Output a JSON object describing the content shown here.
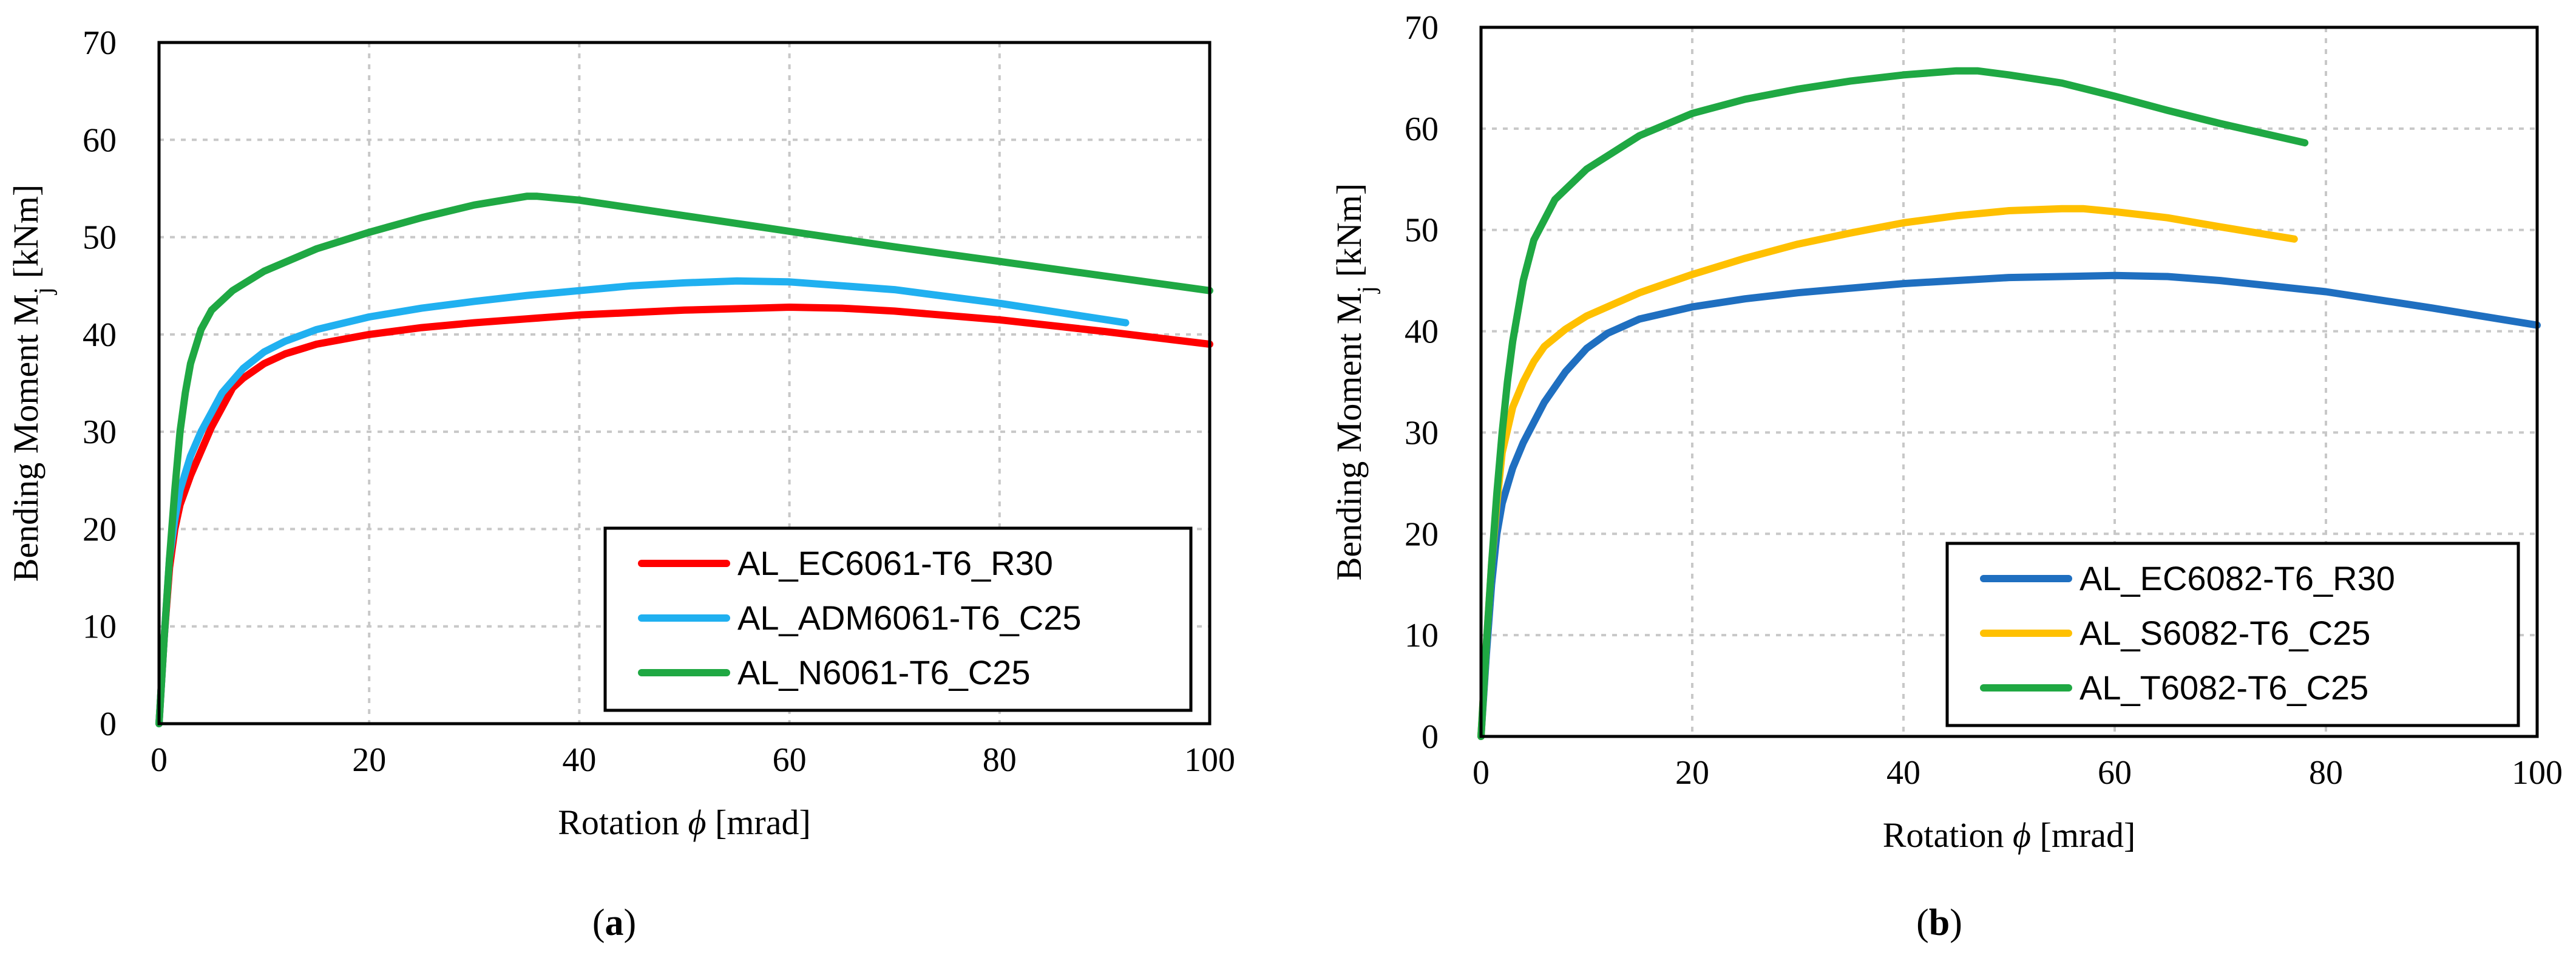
{
  "chart_data": [
    {
      "type": "line",
      "caption": "a",
      "xlabel_prefix": "Rotation ",
      "xlabel_symbol": "ϕ",
      "xlabel_suffix": " [mrad]",
      "ylabel_prefix": "Bending Moment M",
      "ylabel_sub": "j",
      "ylabel_suffix": " [kNm]",
      "xlim": [
        0,
        100
      ],
      "ylim": [
        0,
        70
      ],
      "xticks": [
        "0",
        "20",
        "40",
        "60",
        "80",
        "100"
      ],
      "yticks": [
        "0",
        "10",
        "20",
        "30",
        "40",
        "50",
        "60",
        "70"
      ],
      "grid": true,
      "legend_position": "bottom-right",
      "series": [
        {
          "name": "AL_EC6061-T6_R30",
          "color": "#ff0000",
          "x": [
            0,
            0.5,
            1,
            1.5,
            2,
            3,
            4,
            5,
            6,
            7,
            8,
            10,
            12,
            15,
            20,
            25,
            30,
            35,
            40,
            50,
            60,
            65,
            70,
            80,
            90,
            100
          ],
          "y": [
            0,
            9,
            16,
            20,
            22.5,
            25.5,
            28,
            30.5,
            32.5,
            34.5,
            35.5,
            37,
            38,
            39,
            40,
            40.7,
            41.2,
            41.6,
            42,
            42.5,
            42.8,
            42.7,
            42.4,
            41.5,
            40.3,
            39
          ]
        },
        {
          "name": "AL_ADM6061-T6_C25",
          "color": "#20b0f0",
          "x": [
            0,
            0.5,
            1,
            1.5,
            2,
            3,
            4,
            5,
            6,
            8,
            10,
            12,
            15,
            20,
            25,
            30,
            35,
            40,
            45,
            50,
            55,
            60,
            65,
            70,
            80,
            92
          ],
          "y": [
            0,
            9,
            17,
            21,
            24,
            27.5,
            30,
            32,
            34,
            36.5,
            38.2,
            39.3,
            40.5,
            41.8,
            42.7,
            43.4,
            44,
            44.5,
            45,
            45.3,
            45.5,
            45.4,
            45,
            44.6,
            43.2,
            41.2
          ]
        },
        {
          "name": "AL_N6061-T6_C25",
          "color": "#1fa843",
          "x": [
            0,
            0.5,
            1,
            1.5,
            2,
            2.5,
            3,
            4,
            5,
            7,
            10,
            15,
            20,
            25,
            30,
            35,
            36,
            40,
            50,
            60,
            70,
            80,
            90,
            100
          ],
          "y": [
            0,
            9,
            17,
            24,
            30,
            34,
            37,
            40.5,
            42.5,
            44.5,
            46.5,
            48.8,
            50.5,
            52,
            53.3,
            54.2,
            54.2,
            53.8,
            52.2,
            50.6,
            49,
            47.5,
            46,
            44.5
          ]
        }
      ]
    },
    {
      "type": "line",
      "caption": "b",
      "xlabel_prefix": "Rotation ",
      "xlabel_symbol": "ϕ",
      "xlabel_suffix": " [mrad]",
      "ylabel_prefix": "Bending Moment M",
      "ylabel_sub": "j",
      "ylabel_suffix": " [kNm]",
      "xlim": [
        0,
        100
      ],
      "ylim": [
        0,
        70
      ],
      "xticks": [
        "0",
        "20",
        "40",
        "60",
        "80",
        "100"
      ],
      "yticks": [
        "0",
        "10",
        "20",
        "30",
        "40",
        "50",
        "60",
        "70"
      ],
      "grid": true,
      "legend_position": "bottom-right",
      "series": [
        {
          "name": "AL_EC6082-T6_R30",
          "color": "#1f6fc0",
          "x": [
            0,
            0.5,
            1,
            1.5,
            2,
            3,
            4,
            5,
            6,
            8,
            10,
            12,
            15,
            20,
            25,
            30,
            40,
            50,
            60,
            65,
            70,
            80,
            90,
            100
          ],
          "y": [
            0,
            8,
            15,
            20,
            23,
            26.5,
            29,
            31,
            33,
            36,
            38.3,
            39.8,
            41.2,
            42.4,
            43.2,
            43.8,
            44.7,
            45.3,
            45.5,
            45.4,
            45,
            43.9,
            42.3,
            40.6
          ]
        },
        {
          "name": "AL_S6082-T6_C25",
          "color": "#ffc000",
          "x": [
            0,
            0.5,
            1,
            1.5,
            2,
            3,
            4,
            5,
            6,
            8,
            10,
            15,
            20,
            25,
            30,
            35,
            40,
            45,
            50,
            55,
            57,
            60,
            65,
            70,
            77
          ],
          "y": [
            0,
            9,
            17,
            23,
            28,
            32.5,
            35,
            37,
            38.5,
            40.2,
            41.5,
            43.8,
            45.6,
            47.2,
            48.6,
            49.7,
            50.7,
            51.4,
            51.9,
            52.1,
            52.1,
            51.8,
            51.2,
            50.3,
            49.1
          ]
        },
        {
          "name": "AL_T6082-T6_C25",
          "color": "#1fa843",
          "x": [
            0,
            0.5,
            1,
            1.5,
            2,
            2.5,
            3,
            4,
            5,
            7,
            10,
            15,
            20,
            25,
            30,
            35,
            40,
            45,
            47,
            50,
            55,
            60,
            65,
            70,
            78
          ],
          "y": [
            0,
            9,
            17,
            24,
            30,
            35,
            39,
            45,
            49,
            53,
            56,
            59.3,
            61.5,
            62.9,
            63.9,
            64.7,
            65.3,
            65.7,
            65.7,
            65.3,
            64.5,
            63.2,
            61.8,
            60.5,
            58.6
          ]
        }
      ]
    }
  ]
}
